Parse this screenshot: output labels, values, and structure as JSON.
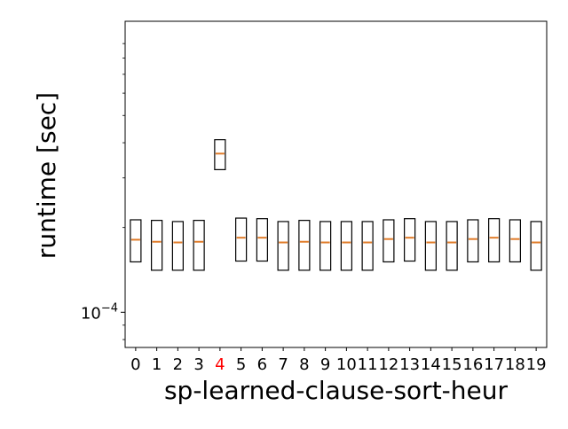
{
  "chart_data": {
    "type": "box",
    "xlabel": "sp-learned-clause-sort-heur",
    "ylabel": "runtime [sec]",
    "yscale": "log",
    "ylim": [
      7.5e-05,
      0.00108
    ],
    "ytick_labels": [
      {
        "base": "10",
        "exp": "−4",
        "value": 0.0001
      }
    ],
    "grid": false,
    "legend": "none",
    "categories": [
      "0",
      "1",
      "2",
      "3",
      "4",
      "5",
      "6",
      "7",
      "8",
      "9",
      "10",
      "11",
      "12",
      "13",
      "14",
      "15",
      "16",
      "17",
      "18",
      "19"
    ],
    "highlight_category": "4",
    "colors": {
      "box": "#000000",
      "median": "#e07b28",
      "highlight_label": "#ff0000",
      "default_label": "#000000"
    },
    "series": [
      {
        "q1": 0.000151,
        "median": 0.000181,
        "q3": 0.000213
      },
      {
        "q1": 0.000141,
        "median": 0.000178,
        "q3": 0.000212
      },
      {
        "q1": 0.000141,
        "median": 0.000177,
        "q3": 0.00021
      },
      {
        "q1": 0.000141,
        "median": 0.000178,
        "q3": 0.000212
      },
      {
        "q1": 0.000321,
        "median": 0.000366,
        "q3": 0.00041
      },
      {
        "q1": 0.000152,
        "median": 0.000184,
        "q3": 0.000216
      },
      {
        "q1": 0.000152,
        "median": 0.000184,
        "q3": 0.000215
      },
      {
        "q1": 0.000141,
        "median": 0.000177,
        "q3": 0.00021
      },
      {
        "q1": 0.000141,
        "median": 0.000178,
        "q3": 0.000212
      },
      {
        "q1": 0.000141,
        "median": 0.000177,
        "q3": 0.00021
      },
      {
        "q1": 0.000141,
        "median": 0.000177,
        "q3": 0.00021
      },
      {
        "q1": 0.000141,
        "median": 0.000177,
        "q3": 0.00021
      },
      {
        "q1": 0.000151,
        "median": 0.000182,
        "q3": 0.000213
      },
      {
        "q1": 0.000152,
        "median": 0.000184,
        "q3": 0.000215
      },
      {
        "q1": 0.000141,
        "median": 0.000177,
        "q3": 0.00021
      },
      {
        "q1": 0.000141,
        "median": 0.000177,
        "q3": 0.00021
      },
      {
        "q1": 0.000151,
        "median": 0.000182,
        "q3": 0.000213
      },
      {
        "q1": 0.000151,
        "median": 0.000184,
        "q3": 0.000215
      },
      {
        "q1": 0.000151,
        "median": 0.000182,
        "q3": 0.000213
      },
      {
        "q1": 0.000141,
        "median": 0.000177,
        "q3": 0.00021
      }
    ]
  }
}
